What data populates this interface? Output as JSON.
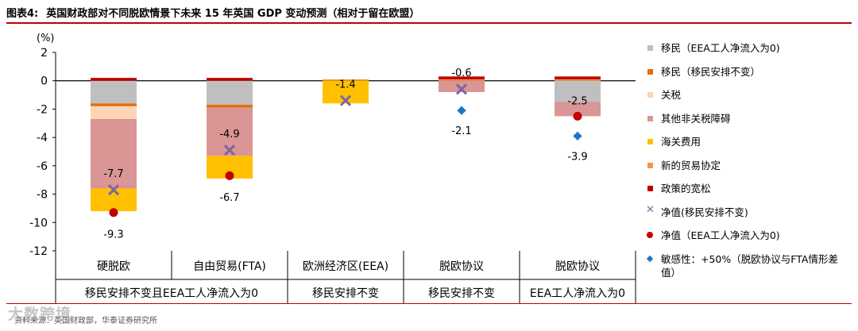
{
  "title": {
    "label": "图表4:",
    "text": "英国财政部对不同脱欧情景下未来 15 年英国 GDP 变动预测（相对于留在欧盟）"
  },
  "colors": {
    "accent_rule": "#c00000",
    "migration_eea": "#bfbfbf",
    "migration_same": "#e46c0a",
    "tariffs": "#fcd5b5",
    "non_tariff": "#d99694",
    "customs": "#ffc000",
    "new_trade": "#f79646",
    "policy": "#c00000",
    "net_same": "#8064a2",
    "net_eea": "#c00000",
    "sensitivity": "#1f77c4"
  },
  "chart_data": {
    "type": "bar",
    "stacked": true,
    "ylabel": "(%)",
    "ylim": [
      -12,
      2
    ],
    "yticks": [
      2,
      0,
      -2,
      -4,
      -6,
      -8,
      -10,
      -12
    ],
    "categories": [
      "硬脱欧",
      "自由贸易(FTA)",
      "欧洲经济区(EEA)",
      "脱欧协议",
      "脱欧协议"
    ],
    "group_labels": [
      {
        "label": "移民安排不变且EEA工人净流入为0",
        "span": [
          0,
          1
        ]
      },
      {
        "label": "移民安排不变",
        "span": [
          2,
          2
        ]
      },
      {
        "label": "移民安排不变",
        "span": [
          3,
          3
        ]
      },
      {
        "label": "EEA工人净流入为0",
        "span": [
          4,
          4
        ]
      }
    ],
    "series": [
      {
        "name": "移民（EEA工人净流入为0）",
        "key": "migration_eea",
        "values": [
          -1.6,
          -1.7,
          0,
          0,
          -1.5
        ]
      },
      {
        "name": "移民（移民安排不变）",
        "key": "migration_same",
        "values": [
          -0.2,
          -0.2,
          0,
          0,
          0
        ]
      },
      {
        "name": "关税",
        "key": "tariffs",
        "values": [
          -0.9,
          0,
          0,
          0,
          0
        ]
      },
      {
        "name": "其他非关税障碍",
        "key": "non_tariff",
        "values": [
          -4.9,
          -3.4,
          0,
          -0.8,
          -1.0
        ]
      },
      {
        "name": "海关费用",
        "key": "customs",
        "values": [
          -1.6,
          -1.6,
          -1.6,
          0,
          0
        ]
      },
      {
        "name": "新的贸易协定",
        "key": "new_trade",
        "values": [
          0,
          0,
          0.1,
          0.1,
          0.1
        ]
      },
      {
        "name": "政策的宽松",
        "key": "policy",
        "values": [
          0.2,
          0.2,
          0,
          0.2,
          0.2
        ]
      }
    ],
    "markers": [
      {
        "name": "净值(移民安排不变)",
        "key": "net_same",
        "shape": "x",
        "values": [
          -7.7,
          -4.9,
          -1.4,
          -0.6,
          null
        ]
      },
      {
        "name": "净值（EEA工人净流入为0）",
        "key": "net_eea",
        "shape": "circle",
        "values": [
          -9.3,
          -6.7,
          null,
          null,
          -2.5
        ]
      },
      {
        "name": "敏感性：+50%（脱欧协议与FTA情形差值）",
        "key": "sensitivity",
        "shape": "diamond",
        "values": [
          null,
          null,
          null,
          -2.1,
          -3.9
        ]
      }
    ],
    "labels": [
      {
        "text": "-7.7",
        "cat": 0,
        "y": -6.5
      },
      {
        "text": "-9.3",
        "cat": 0,
        "y": -10.8
      },
      {
        "text": "-4.9",
        "cat": 1,
        "y": -3.7
      },
      {
        "text": "-6.7",
        "cat": 1,
        "y": -8.2
      },
      {
        "text": "-1.4",
        "cat": 2,
        "y": -0.2
      },
      {
        "text": "-0.6",
        "cat": 3,
        "y": 0.6
      },
      {
        "text": "-2.1",
        "cat": 3,
        "y": -3.5
      },
      {
        "text": "-2.5",
        "cat": 4,
        "y": -1.4
      },
      {
        "text": "-3.9",
        "cat": 4,
        "y": -5.3
      }
    ]
  },
  "legend": [
    {
      "label": "移民（EEA工人净流入为0)",
      "color": "#bfbfbf",
      "shape": "square"
    },
    {
      "label": "移民（移民安排不变）",
      "color": "#e46c0a",
      "shape": "square"
    },
    {
      "label": "关税",
      "color": "#fcd5b5",
      "shape": "square"
    },
    {
      "label": "其他非关税障碍",
      "color": "#d99694",
      "shape": "square"
    },
    {
      "label": "海关费用",
      "color": "#ffc000",
      "shape": "square"
    },
    {
      "label": "新的贸易协定",
      "color": "#f79646",
      "shape": "square"
    },
    {
      "label": "政策的宽松",
      "color": "#c00000",
      "shape": "square"
    },
    {
      "label": "净值(移民安排不变)",
      "color": "#8064a2",
      "shape": "x"
    },
    {
      "label": "净值（EEA工人净流入为0)",
      "color": "#c00000",
      "shape": "circle"
    },
    {
      "label": "敏感性：+50%（脱欧协议与FTA情形差值）",
      "color": "#1f77c4",
      "shape": "diamond"
    }
  ],
  "source": "资料来源：英国财政部，华泰证券研究所",
  "watermark": "大数跨境"
}
